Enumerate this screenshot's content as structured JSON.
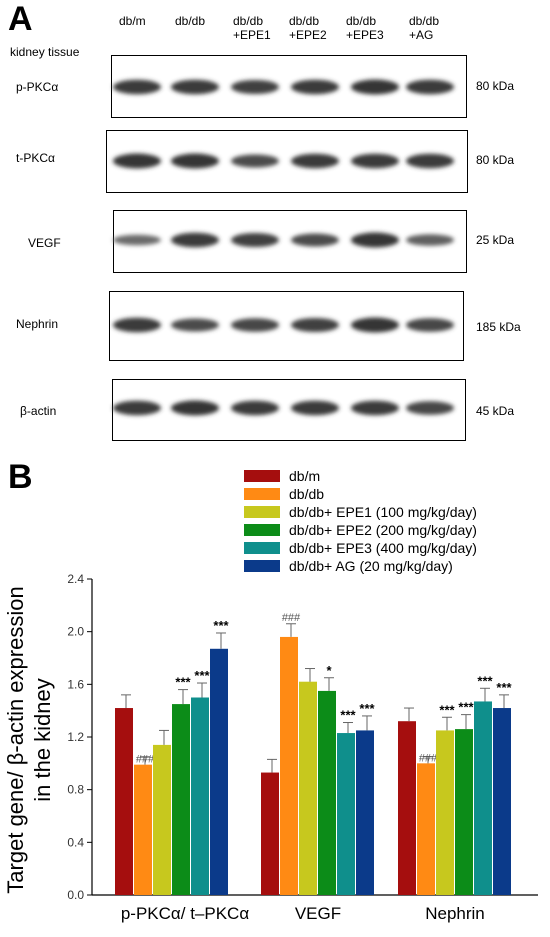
{
  "panel_a": {
    "letter": "A",
    "tissue_label": "kidney tissue",
    "lanes": [
      {
        "line1": "db/m",
        "line2": ""
      },
      {
        "line1": "db/db",
        "line2": ""
      },
      {
        "line1": "db/db",
        "line2": "+EPE1"
      },
      {
        "line1": "db/db",
        "line2": "+EPE2"
      },
      {
        "line1": "db/db",
        "line2": "+EPE3"
      },
      {
        "line1": "db/db",
        "line2": "+AG"
      }
    ],
    "blots": [
      {
        "label": "p-PKCα",
        "kda": "80 kDa",
        "intensity": [
          0.85,
          0.85,
          0.8,
          0.85,
          0.9,
          0.85
        ]
      },
      {
        "label": "t-PKCα",
        "kda": "80 kDa",
        "intensity": [
          0.9,
          0.9,
          0.7,
          0.85,
          0.85,
          0.85
        ]
      },
      {
        "label": "VEGF",
        "kda": "25 kDa",
        "intensity": [
          0.45,
          0.85,
          0.8,
          0.7,
          0.9,
          0.55
        ]
      },
      {
        "label": "Nephrin",
        "kda": "185 kDa",
        "intensity": [
          0.85,
          0.7,
          0.75,
          0.8,
          0.9,
          0.75
        ]
      },
      {
        "label": "β-actin",
        "kda": "45 kDa",
        "intensity": [
          0.85,
          0.9,
          0.85,
          0.85,
          0.85,
          0.75
        ]
      }
    ]
  },
  "panel_b": {
    "letter": "B"
  },
  "chart_data": {
    "type": "bar",
    "title": "",
    "xlabel": "",
    "ylabel": "Target gene/ β-actin expression in the kidney",
    "ylabel_line1": "Target gene/ β-actin expression",
    "ylabel_line2": "in the kidney",
    "ylim": [
      0,
      2.4
    ],
    "yticks": [
      "0.0",
      "0.4",
      "0.8",
      "1.2",
      "1.6",
      "2.0",
      "2.4"
    ],
    "grid": false,
    "legend_position": "top-right",
    "categories": [
      "p-PKCα/ t–PKCα",
      "VEGF",
      "Nephrin"
    ],
    "series": [
      {
        "name": "db/m",
        "color": "#A50E0E",
        "values": [
          1.42,
          0.93,
          1.32
        ],
        "errors": [
          0.1,
          0.1,
          0.1
        ],
        "annotations": [
          "",
          "",
          ""
        ]
      },
      {
        "name": "db/db",
        "color": "#FF8A14",
        "values": [
          0.99,
          1.96,
          1.0
        ],
        "errors": [
          0.06,
          0.1,
          0.05
        ],
        "annotations": [
          "###",
          "###",
          "###"
        ]
      },
      {
        "name": "db/db+ EPE1 (100 mg/kg/day)",
        "color": "#C7C81E",
        "values": [
          1.14,
          1.62,
          1.25
        ],
        "errors": [
          0.11,
          0.1,
          0.1
        ],
        "annotations": [
          "",
          "",
          "***"
        ]
      },
      {
        "name": "db/db+ EPE2 (200 mg/kg/day)",
        "color": "#0C8C18",
        "values": [
          1.45,
          1.55,
          1.26
        ],
        "errors": [
          0.11,
          0.1,
          0.11
        ],
        "annotations": [
          "***",
          "*",
          "***"
        ]
      },
      {
        "name": "db/db+ EPE3 (400 mg/kg/day)",
        "color": "#0F8F8C",
        "values": [
          1.5,
          1.23,
          1.47
        ],
        "errors": [
          0.11,
          0.08,
          0.1
        ],
        "annotations": [
          "***",
          "***",
          "***"
        ]
      },
      {
        "name": "db/db+ AG (20 mg/kg/day)",
        "color": "#0B3A8A",
        "values": [
          1.87,
          1.25,
          1.42
        ],
        "errors": [
          0.12,
          0.11,
          0.1
        ],
        "annotations": [
          "***",
          "***",
          "***"
        ]
      }
    ]
  }
}
